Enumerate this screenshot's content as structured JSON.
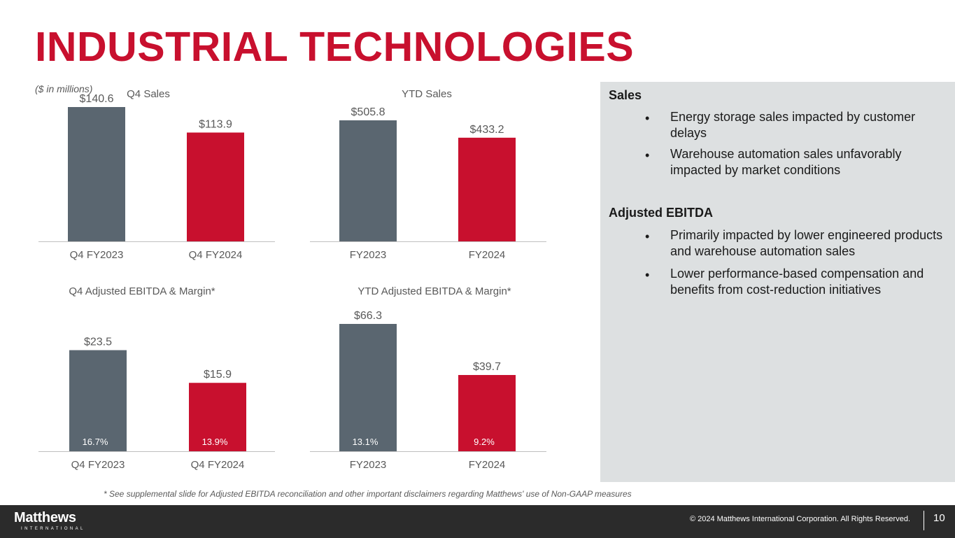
{
  "page": {
    "title": "INDUSTRIAL TECHNOLOGIES",
    "units_note": "($ in millions)",
    "footnote": "* See supplemental slide for Adjusted EBITDA reconciliation and other important disclaimers regarding Matthews' use of Non-GAAP measures"
  },
  "colors": {
    "prior": "#5a6670",
    "current": "#c8102e",
    "title": "#c8102e"
  },
  "chart_data": [
    {
      "type": "bar",
      "title": "Q4 Sales",
      "categories": [
        "Q4 FY2023",
        "Q4 FY2024"
      ],
      "values": [
        140.6,
        113.9
      ],
      "labels": [
        "$140.6",
        "$113.9"
      ],
      "ylim": [
        0,
        140.6
      ]
    },
    {
      "type": "bar",
      "title": "YTD Sales",
      "categories": [
        "FY2023",
        "FY2024"
      ],
      "values": [
        505.8,
        433.2
      ],
      "labels": [
        "$505.8",
        "$433.2"
      ],
      "ylim": [
        0,
        505.8
      ]
    },
    {
      "type": "bar",
      "title": "Q4 Adjusted EBITDA & Margin*",
      "categories": [
        "Q4 FY2023",
        "Q4 FY2024"
      ],
      "values": [
        23.5,
        15.9
      ],
      "labels": [
        "$23.5",
        "$15.9"
      ],
      "margins": [
        "16.7%",
        "13.9%"
      ],
      "ylim": [
        0,
        29.6
      ]
    },
    {
      "type": "bar",
      "title": "YTD Adjusted EBITDA & Margin*",
      "categories": [
        "FY2023",
        "FY2024"
      ],
      "values": [
        66.3,
        39.7
      ],
      "labels": [
        "$66.3",
        "$39.7"
      ],
      "margins": [
        "13.1%",
        "9.2%"
      ],
      "ylim": [
        0,
        66.3
      ]
    }
  ],
  "panel": {
    "sales_heading": "Sales",
    "sales_bullets": [
      "Energy storage sales impacted by customer delays",
      "Warehouse automation sales unfavorably impacted by market conditions"
    ],
    "ebitda_heading": "Adjusted EBITDA",
    "ebitda_bullets": [
      "Primarily impacted by lower engineered products and warehouse automation sales",
      "Lower performance-based compensation and benefits from cost-reduction initiatives"
    ],
    "bullet_char": "•"
  },
  "footer": {
    "logo": "Matthews",
    "logo_sub": "INTERNATIONAL",
    "copyright": "© 2024 Matthews International Corporation. All Rights Reserved.",
    "page_number": "10"
  }
}
